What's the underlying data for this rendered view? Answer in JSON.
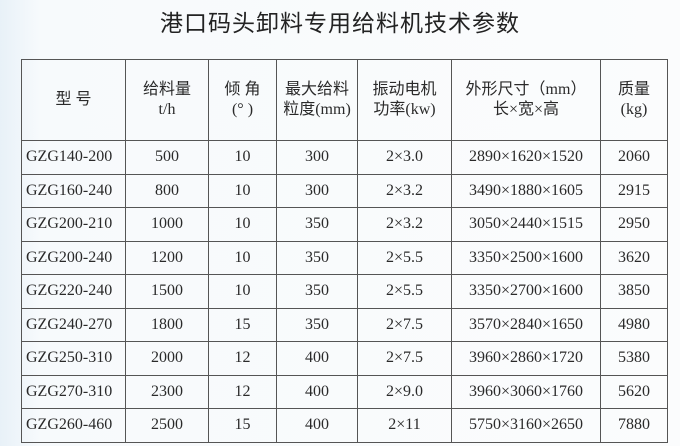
{
  "title": "港口码头卸料专用给料机技术参数",
  "headers": [
    {
      "l1": "型 号",
      "l2": ""
    },
    {
      "l1": "给料量",
      "l2": "t/h"
    },
    {
      "l1": "倾 角",
      "l2": "(° )"
    },
    {
      "l1": "最大给料",
      "l2": "粒度(mm)"
    },
    {
      "l1": "振动电机",
      "l2": "功率(kw)"
    },
    {
      "l1": "外形尺寸（mm）",
      "l2": "长×宽×高"
    },
    {
      "l1": "质量",
      "l2": "(kg)"
    }
  ],
  "rows": [
    [
      "GZG140-200",
      "500",
      "10",
      "300",
      "2×3.0",
      "2890×1620×1520",
      "2060"
    ],
    [
      "GZG160-240",
      "800",
      "10",
      "300",
      "2×3.2",
      "3490×1880×1605",
      "2915"
    ],
    [
      "GZG200-210",
      "1000",
      "10",
      "350",
      "2×3.2",
      "3050×2440×1515",
      "2950"
    ],
    [
      "GZG200-240",
      "1200",
      "10",
      "350",
      "2×5.5",
      "3350×2500×1600",
      "3620"
    ],
    [
      "GZG220-240",
      "1500",
      "10",
      "350",
      "2×5.5",
      "3350×2700×1600",
      "3850"
    ],
    [
      "GZG240-270",
      "1800",
      "15",
      "350",
      "2×7.5",
      "3570×2840×1650",
      "4980"
    ],
    [
      "GZG250-310",
      "2000",
      "12",
      "400",
      "2×7.5",
      "3960×2860×1720",
      "5380"
    ],
    [
      "GZG270-310",
      "2300",
      "12",
      "400",
      "2×9.0",
      "3960×3060×1760",
      "5620"
    ],
    [
      "GZG260-460",
      "2500",
      "15",
      "400",
      "2×11",
      "5750×3160×2650",
      "7880"
    ]
  ]
}
